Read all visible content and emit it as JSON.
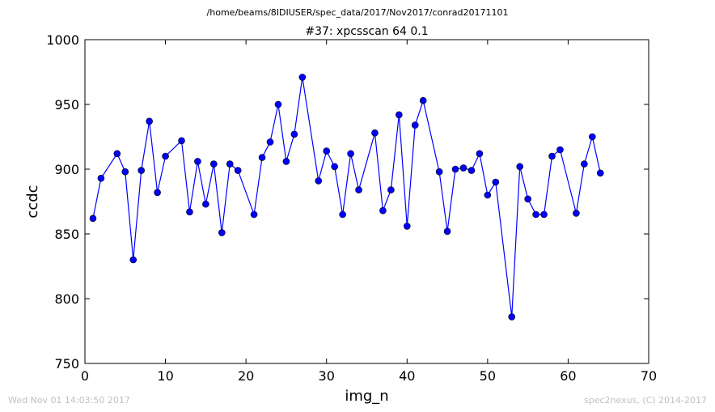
{
  "page": {
    "suptitle": "/home/beams/8IDIUSER/spec_data/2017/Nov2017/conrad20171101",
    "footer_left": "Wed Nov 01 14:03:50 2017",
    "footer_right": "spec2nexus, (C) 2014-2017"
  },
  "chart_data": {
    "type": "line",
    "title": "#37: xpcsscan 64 0.1",
    "xlabel": "img_n",
    "ylabel": "ccdc",
    "xlim": [
      0,
      70
    ],
    "ylim": [
      750,
      1000
    ],
    "xticks": [
      0,
      10,
      20,
      30,
      40,
      50,
      60,
      70
    ],
    "yticks": [
      750,
      800,
      850,
      900,
      950,
      1000
    ],
    "grid": false,
    "marker": "circle",
    "line_color": "#0000ff",
    "series": [
      {
        "x": [
          1,
          2,
          4,
          5,
          6,
          7,
          8,
          9,
          10,
          12,
          13,
          14,
          15,
          16,
          17,
          18,
          19,
          21,
          22,
          23,
          24,
          25,
          26,
          27,
          29,
          30,
          31,
          32,
          33,
          34,
          36,
          37,
          38,
          39,
          40,
          41,
          42,
          44,
          45,
          46,
          47,
          48,
          49,
          50,
          51,
          53,
          54,
          55,
          56,
          57,
          58,
          59,
          61,
          62,
          63,
          64
        ],
        "y": [
          862,
          893,
          912,
          898,
          830,
          899,
          937,
          882,
          910,
          922,
          867,
          906,
          873,
          904,
          851,
          904,
          899,
          865,
          909,
          921,
          950,
          906,
          927,
          971,
          891,
          914,
          902,
          865,
          912,
          884,
          928,
          868,
          884,
          942,
          856,
          934,
          953,
          898,
          852,
          900,
          901,
          899,
          912,
          880,
          890,
          786,
          902,
          877,
          865,
          865,
          910,
          915,
          866,
          904,
          925,
          897
        ]
      }
    ]
  }
}
